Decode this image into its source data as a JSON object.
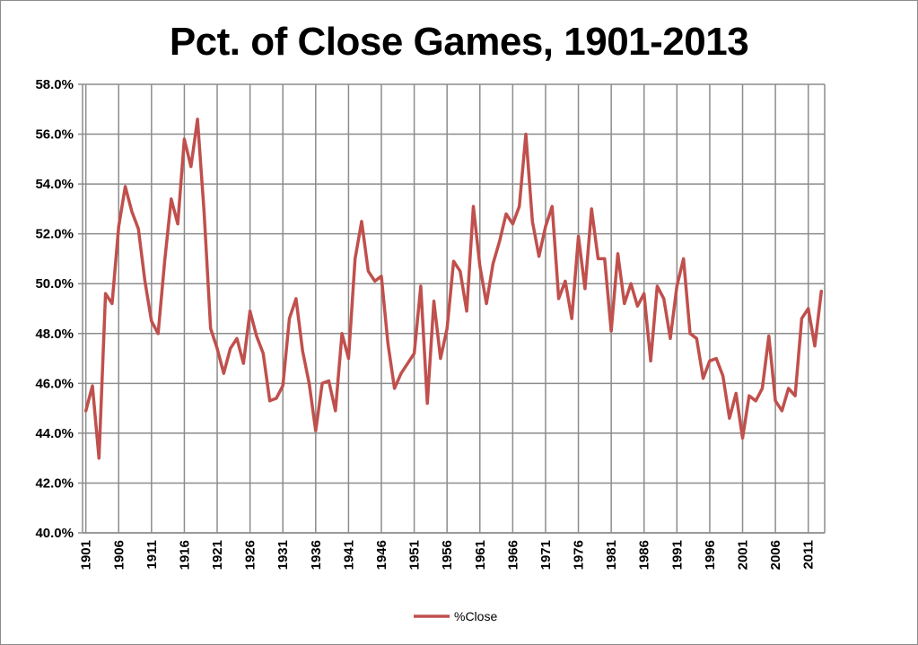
{
  "chart_data": {
    "type": "line",
    "title": "Pct. of Close Games, 1901-2013",
    "xlabel": "",
    "ylabel": "",
    "ylim": [
      40,
      58
    ],
    "y_ticks": [
      "40.0%",
      "42.0%",
      "44.0%",
      "46.0%",
      "48.0%",
      "50.0%",
      "52.0%",
      "54.0%",
      "56.0%",
      "58.0%"
    ],
    "x_ticks": [
      "1901",
      "1906",
      "1911",
      "1916",
      "1921",
      "1926",
      "1931",
      "1936",
      "1941",
      "1946",
      "1951",
      "1956",
      "1961",
      "1966",
      "1971",
      "1976",
      "1981",
      "1986",
      "1991",
      "1996",
      "2001",
      "2006",
      "2011"
    ],
    "x_start": 1901,
    "grid": true,
    "legend_position": "bottom",
    "colors": {
      "line": "#C0504D",
      "grid": "#8c8c8c"
    },
    "series": [
      {
        "name": "%Close",
        "values": [
          44.9,
          45.9,
          43.0,
          49.6,
          49.2,
          52.3,
          53.9,
          52.9,
          52.2,
          50.1,
          48.5,
          48.0,
          50.9,
          53.4,
          52.4,
          55.8,
          54.7,
          56.6,
          52.9,
          48.2,
          47.4,
          46.4,
          47.4,
          47.8,
          46.8,
          48.9,
          47.9,
          47.2,
          45.3,
          45.4,
          45.9,
          48.6,
          49.4,
          47.3,
          46.0,
          44.1,
          46.0,
          46.1,
          44.9,
          48.0,
          47.0,
          51.0,
          52.5,
          50.5,
          50.1,
          50.3,
          47.6,
          45.8,
          46.4,
          46.8,
          47.2,
          49.9,
          45.2,
          49.3,
          47.0,
          48.2,
          50.9,
          50.5,
          48.9,
          53.1,
          50.7,
          49.2,
          50.8,
          51.7,
          52.8,
          52.4,
          53.1,
          56.0,
          52.5,
          51.1,
          52.3,
          53.1,
          49.4,
          50.1,
          48.6,
          51.9,
          49.8,
          53.0,
          51.0,
          51.0,
          48.1,
          51.2,
          49.2,
          50.0,
          49.1,
          49.6,
          46.9,
          49.9,
          49.4,
          47.8,
          49.9,
          51.0,
          48.0,
          47.8,
          46.2,
          46.9,
          47.0,
          46.3,
          44.6,
          45.6,
          43.8,
          45.5,
          45.3,
          45.8,
          47.9,
          45.3,
          44.9,
          45.8,
          45.5,
          48.6,
          49.0,
          47.5,
          49.7
        ]
      }
    ]
  }
}
